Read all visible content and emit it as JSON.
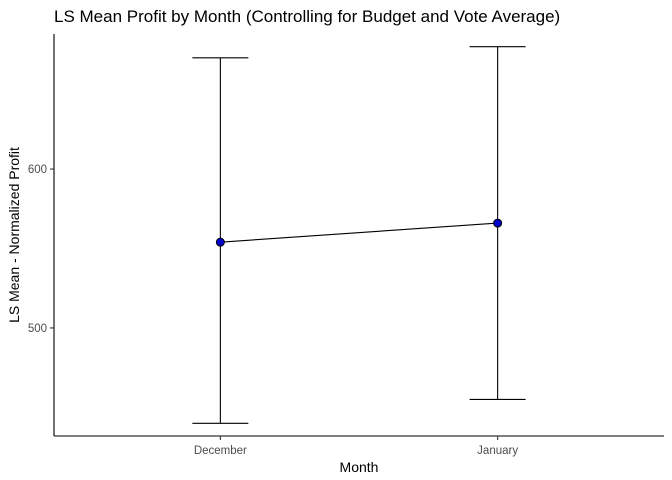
{
  "chart_data": {
    "type": "line",
    "title": "LS Mean Profit by Month (Controlling for Budget and Vote Average)",
    "xlabel": "Month",
    "ylabel": "LS Mean - Normalized Profit",
    "categories": [
      "December",
      "January"
    ],
    "series": [
      {
        "values": [
          554,
          566
        ],
        "lower": [
          440,
          455
        ],
        "upper": [
          670,
          677
        ]
      }
    ],
    "yticks": [
      500,
      600
    ],
    "ylim": [
      432,
      685
    ],
    "grid": false,
    "point_color": "#0000cd",
    "line_color": "#000000"
  }
}
